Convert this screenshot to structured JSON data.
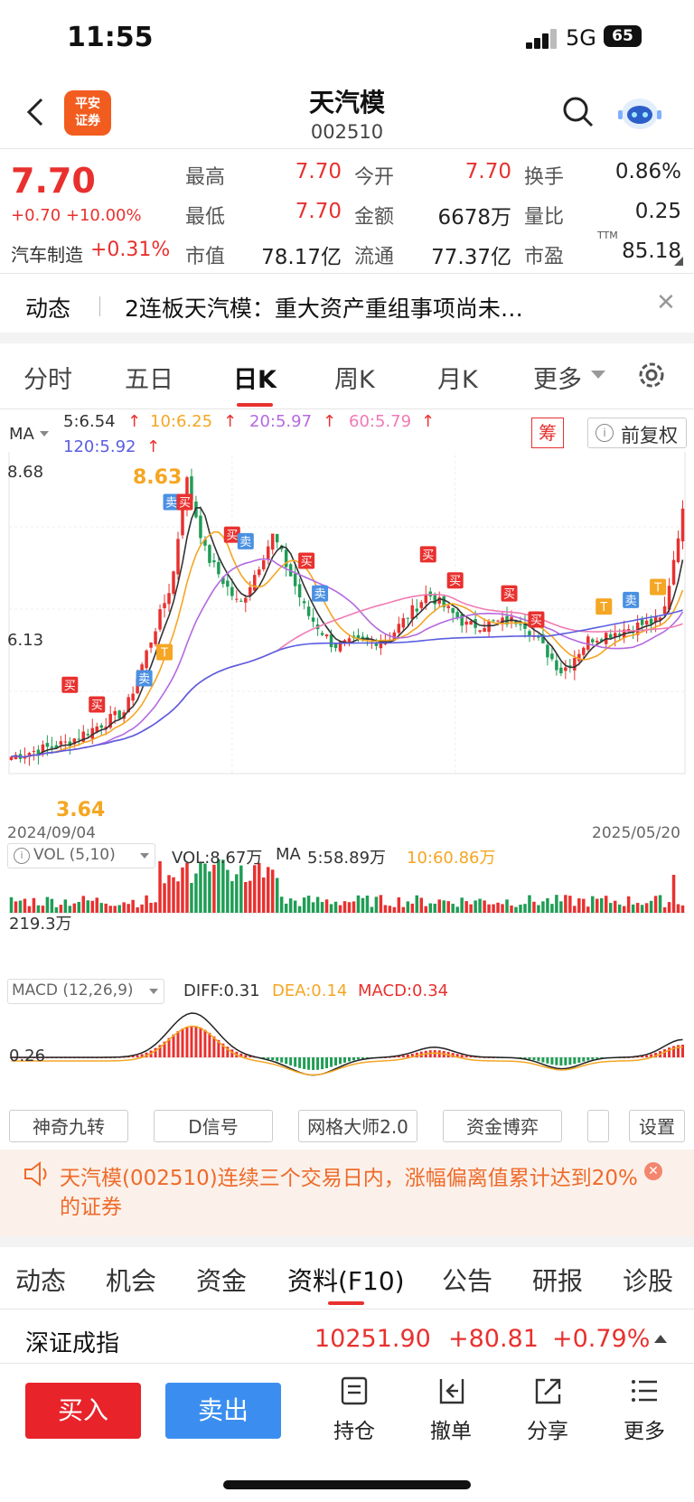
{
  "status": {
    "time": "11:55",
    "network": "5G",
    "battery": "65"
  },
  "header": {
    "title": "天汽模",
    "code": "002510",
    "broker_logo": "平安证券"
  },
  "quote": {
    "price": "7.70",
    "change": "+0.70 +10.00%",
    "sector_name": "汽车制造",
    "sector_change": "+0.31%",
    "rows": [
      [
        {
          "label": "最高",
          "value": "7.70",
          "color": "red"
        },
        {
          "label": "今开",
          "value": "7.70",
          "color": "red"
        },
        {
          "label": "换手",
          "value": "0.86%",
          "color": "dark"
        }
      ],
      [
        {
          "label": "最低",
          "value": "7.70",
          "color": "red"
        },
        {
          "label": "金额",
          "value": "6678万",
          "color": "dark"
        },
        {
          "label": "量比",
          "value": "0.25",
          "color": "dark"
        }
      ],
      [
        {
          "label": "市值",
          "value": "78.17亿",
          "color": "dark"
        },
        {
          "label": "流通",
          "value": "77.37亿",
          "color": "dark"
        },
        {
          "label": "市盈",
          "value": "85.18",
          "color": "dark"
        }
      ]
    ],
    "pe_suffix": "TTM"
  },
  "news": {
    "tag": "动态",
    "text": "2连板天汽模：重大资产重组事项尚未…"
  },
  "chart_tabs": [
    "分时",
    "五日",
    "日K",
    "周K",
    "月K",
    "更多"
  ],
  "ma_legend": {
    "label": "MA",
    "items": [
      {
        "text": "5:6.54",
        "color": "#333333"
      },
      {
        "text": "10:6.25",
        "color": "#f5a623"
      },
      {
        "text": "20:5.97",
        "color": "#b469e0"
      },
      {
        "text": "60:5.79",
        "color": "#f07ab4"
      },
      {
        "text": "120:5.92",
        "color": "#5a5ee0"
      }
    ],
    "chip_label": "筹",
    "adjust_label": "前复权"
  },
  "kline": {
    "y_top": "8.68",
    "y_mid": "6.13",
    "high_label": "8.63",
    "low_label": "3.64",
    "date_start": "2024/09/04",
    "date_end": "2025/05/20"
  },
  "volume": {
    "selector": "VOL (5,10)",
    "vol": "VOL:8.67万",
    "ma_label": "MA",
    "ma5": "5:58.89万",
    "ma10": "10:60.86万",
    "axis": "219.3万"
  },
  "macd": {
    "selector": "MACD (12,26,9)",
    "diff": "DIFF:0.31",
    "dea": "DEA:0.14",
    "macd": "MACD:0.34",
    "axis": "0.26"
  },
  "indicator_buttons": [
    "神奇九转",
    "D信号",
    "网格大师2.0",
    "资金博弈",
    "设置"
  ],
  "alert": {
    "text": "天汽模(002510)连续三个交易日内，涨幅偏离值累计达到20%的证券"
  },
  "bottom_tabs": [
    "动态",
    "机会",
    "资金",
    "资料(F10)",
    "公告",
    "研报",
    "诊股"
  ],
  "index": {
    "name": "深证成指",
    "value": "10251.90",
    "change": "+80.81",
    "pct": "+0.79%"
  },
  "actions": {
    "buy": "买入",
    "sell": "卖出",
    "items": [
      "持仓",
      "撤单",
      "分享",
      "更多"
    ]
  },
  "colors": {
    "up": "#e8312f",
    "down": "#1f9d55",
    "accent": "#e8312f",
    "sell_blue": "#3b8ef0"
  },
  "chart_data": {
    "type": "candlestick",
    "title": "",
    "xlabel": "",
    "ylabel": "",
    "x_range": [
      "2024/09/04",
      "2025/05/20"
    ],
    "ylim": [
      3.64,
      8.68
    ],
    "anchor_points": [
      {
        "t": 0,
        "close": 3.9
      },
      {
        "t": 0.08,
        "close": 4.1
      },
      {
        "t": 0.17,
        "close": 4.6
      },
      {
        "t": 0.24,
        "close": 6.6
      },
      {
        "t": 0.26,
        "close": 8.2
      },
      {
        "t": 0.29,
        "close": 7.0
      },
      {
        "t": 0.34,
        "close": 6.2
      },
      {
        "t": 0.39,
        "close": 7.3
      },
      {
        "t": 0.44,
        "close": 6.1
      },
      {
        "t": 0.48,
        "close": 5.6
      },
      {
        "t": 0.56,
        "close": 5.7
      },
      {
        "t": 0.62,
        "close": 6.4
      },
      {
        "t": 0.68,
        "close": 5.9
      },
      {
        "t": 0.76,
        "close": 6.0
      },
      {
        "t": 0.82,
        "close": 5.2
      },
      {
        "t": 0.86,
        "close": 5.7
      },
      {
        "t": 0.93,
        "close": 5.9
      },
      {
        "t": 0.97,
        "close": 6.0
      },
      {
        "t": 1.0,
        "close": 7.7
      }
    ],
    "ma_last": {
      "MA5": 6.54,
      "MA10": 6.25,
      "MA20": 5.97,
      "MA60": 5.79,
      "MA120": 5.92
    }
  }
}
